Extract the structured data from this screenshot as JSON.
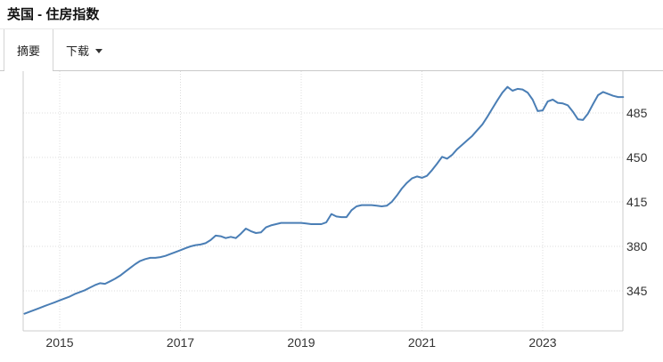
{
  "header": {
    "title": "英国 - 住房指数"
  },
  "tabs": [
    {
      "label": "摘要",
      "active": true
    },
    {
      "label": "下载",
      "active": false,
      "has_caret": true
    }
  ],
  "chart_data": {
    "type": "line",
    "title": "英国 - 住房指数",
    "grid": "dotted",
    "y_axis_side": "right",
    "legend": "none",
    "yticks": [
      "485",
      "450",
      "415",
      "380",
      "345"
    ],
    "ytick_values": [
      485,
      450,
      415,
      380,
      345
    ],
    "xticks": [
      "2015",
      "2017",
      "2019",
      "2021",
      "2023"
    ],
    "xtick_years": [
      2015,
      2017,
      2019,
      2021,
      2023
    ],
    "x_range_years": [
      2014.39,
      2024.42
    ],
    "y_range": [
      313.5,
      518
    ],
    "series": [
      {
        "name": "住房指数",
        "color": "#4a7eb5",
        "start_year": 2014.4167,
        "step_years": 0.0833333,
        "values": [
          327,
          328.5,
          330,
          331.5,
          333,
          334.5,
          336,
          337.5,
          339,
          340.5,
          342.5,
          344,
          345.5,
          347.5,
          349.5,
          351,
          350.5,
          352.5,
          354.5,
          357,
          360,
          363,
          366,
          368.5,
          370,
          371,
          371,
          371.5,
          372.5,
          374,
          375.5,
          377,
          378.5,
          380,
          381,
          381.5,
          382.5,
          385,
          388.5,
          388,
          386.5,
          387.5,
          386.5,
          390,
          394,
          392,
          390.5,
          391,
          395,
          396.5,
          397.5,
          398.5,
          398.5,
          398.5,
          398.5,
          398.5,
          398,
          397.5,
          397.5,
          397.5,
          399,
          405.5,
          403.5,
          403,
          403,
          408.5,
          411.5,
          412.5,
          412.5,
          412.5,
          412,
          411.5,
          412,
          415,
          420,
          425.5,
          430,
          433.5,
          435,
          434,
          435.5,
          440,
          445,
          450.5,
          449,
          452,
          456.5,
          460,
          463.5,
          467,
          471.5,
          476,
          482,
          488.5,
          495,
          501,
          505.5,
          502.5,
          504,
          503.5,
          501,
          495.5,
          486.5,
          487,
          494,
          495.5,
          493,
          492.5,
          491,
          486,
          480,
          479.5,
          484.5,
          492,
          499,
          501.5,
          500,
          498.5,
          497.5,
          497.5
        ]
      }
    ],
    "colors": {
      "line": "#4a7eb5",
      "grid_dotted": "#dcdcdc",
      "plot_border": "#cccccc",
      "tick_text": "#333333"
    }
  }
}
